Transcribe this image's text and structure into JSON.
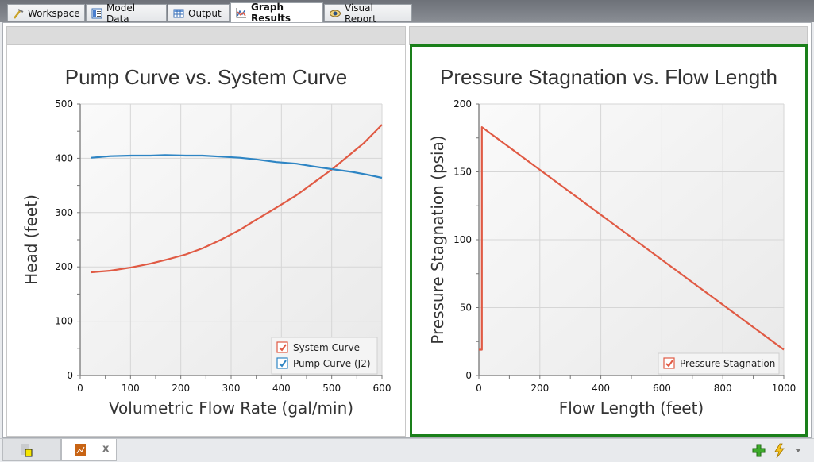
{
  "tabs": [
    {
      "label": "Workspace",
      "icon": "workspace-icon",
      "active": false
    },
    {
      "label": "Model Data",
      "icon": "model-data-icon",
      "active": false
    },
    {
      "label": "Output",
      "icon": "output-table-icon",
      "active": false
    },
    {
      "label": "Graph Results",
      "icon": "graph-icon",
      "active": true
    },
    {
      "label": "Visual Report",
      "icon": "eye-icon",
      "active": false
    }
  ],
  "bottom": {
    "close_label": "x",
    "add_icon": "plus-icon",
    "quick_icon": "lightning-icon",
    "menu_icon": "dropdown-arrow-icon"
  },
  "colors": {
    "system_curve": "#e05a44",
    "pump_curve": "#2e85c4",
    "pressure_stagnation": "#e05a44",
    "selected_border": "#1a7f1a"
  },
  "chart_data": [
    {
      "type": "line",
      "title": "Pump Curve vs. System Curve",
      "xlabel": "Volumetric Flow Rate (gal/min)",
      "ylabel": "Head (feet)",
      "xlim": [
        0,
        600
      ],
      "ylim": [
        0,
        500
      ],
      "xticks": [
        0,
        100,
        200,
        300,
        400,
        500,
        600
      ],
      "yticks": [
        0,
        100,
        200,
        300,
        400,
        500
      ],
      "grid": true,
      "legend_position": "bottom-right",
      "series": [
        {
          "name": "System Curve",
          "color": "#e05a44",
          "x": [
            22,
            60,
            101,
            140,
            175,
            210,
            243,
            280,
            317,
            350,
            390,
            430,
            464,
            501,
            530,
            564,
            600
          ],
          "y": [
            190,
            193,
            199,
            206,
            214,
            223,
            234,
            250,
            268,
            287,
            309,
            332,
            355,
            380,
            402,
            428,
            462
          ]
        },
        {
          "name": "Pump Curve (J2)",
          "color": "#2e85c4",
          "x": [
            22,
            60,
            101,
            140,
            169,
            210,
            243,
            280,
            317,
            350,
            390,
            430,
            464,
            501,
            540,
            570,
            600
          ],
          "y": [
            401,
            404,
            405,
            405,
            406,
            405,
            405,
            403,
            401,
            398,
            393,
            390,
            385,
            380,
            375,
            370,
            364
          ]
        }
      ]
    },
    {
      "type": "line",
      "title": "Pressure Stagnation vs. Flow Length",
      "xlabel": "Flow Length (feet)",
      "ylabel": "Pressure Stagnation (psia)",
      "xlim": [
        0,
        1000
      ],
      "ylim": [
        0,
        200
      ],
      "xticks": [
        0,
        200,
        400,
        600,
        800,
        1000
      ],
      "yticks": [
        0,
        50,
        100,
        150,
        200
      ],
      "grid": true,
      "legend_position": "bottom-right",
      "series": [
        {
          "name": "Pressure Stagnation",
          "color": "#e05a44",
          "x": [
            0,
            10,
            10,
            1000
          ],
          "y": [
            19,
            19,
            183,
            19
          ]
        }
      ]
    }
  ]
}
